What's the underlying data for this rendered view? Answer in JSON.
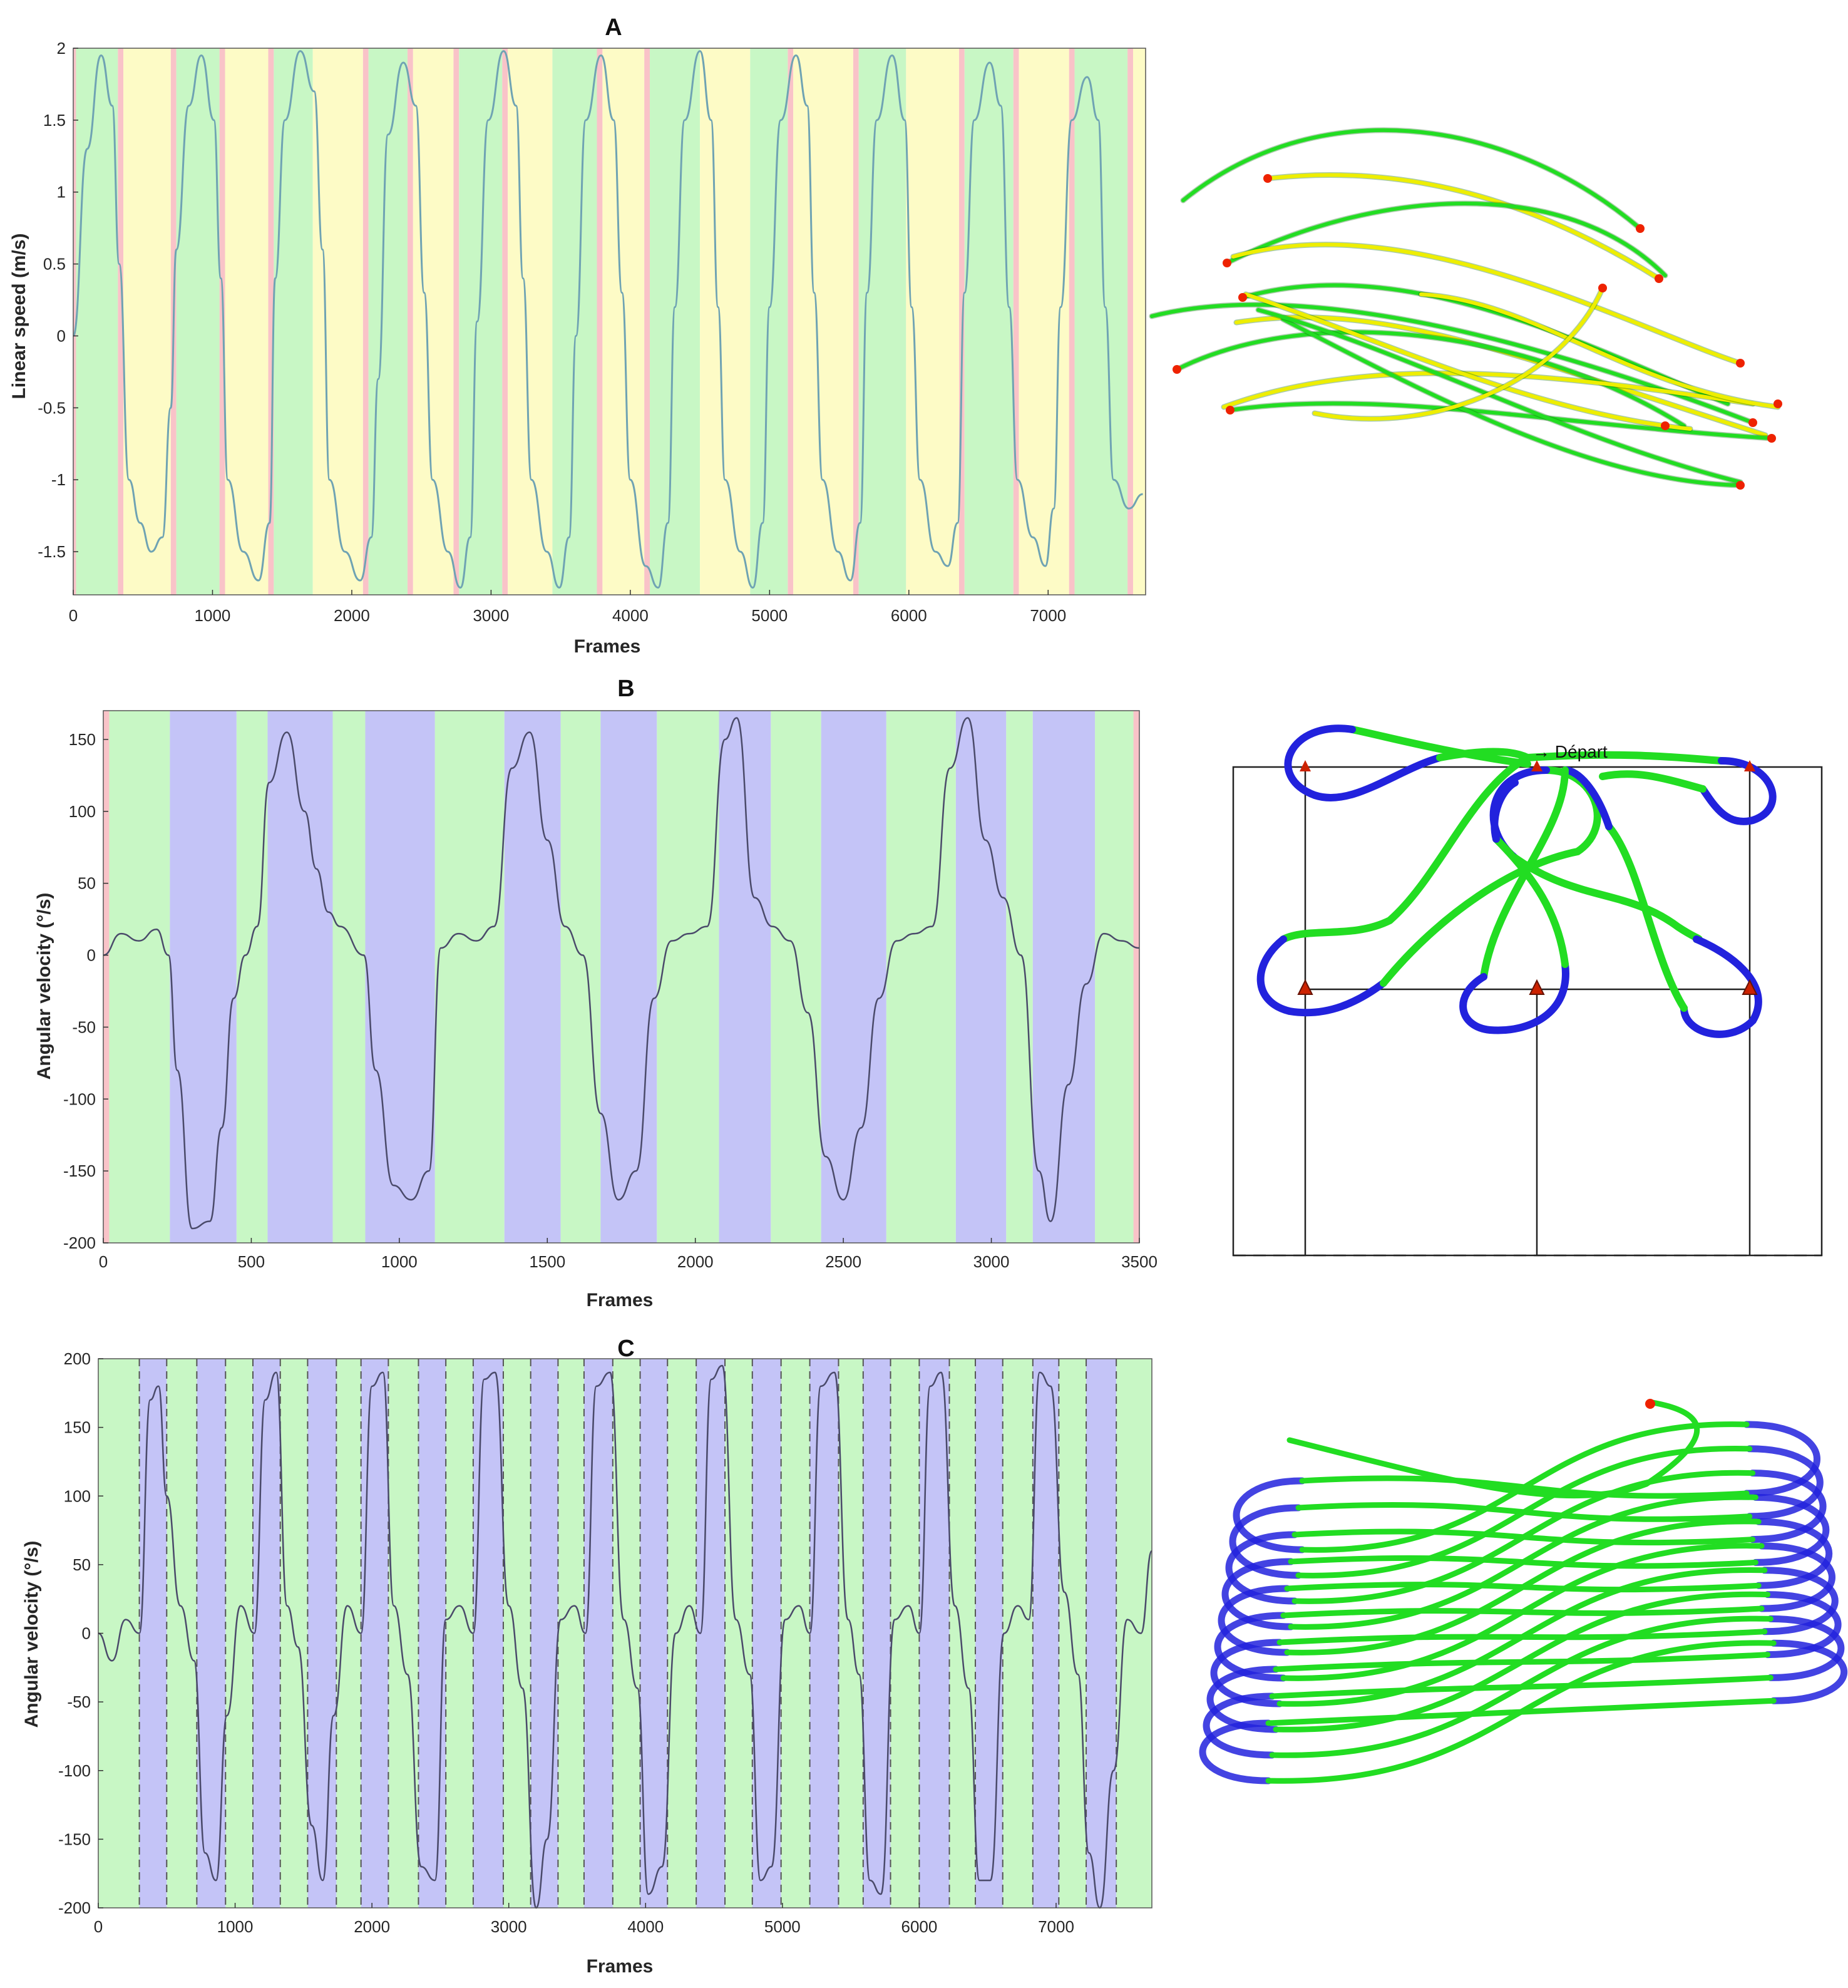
{
  "colors": {
    "green_phase": "#c8f7c5",
    "yellow_phase": "#fdfbc6",
    "red_phase": "#f9c3c8",
    "purple_phase": "#c4c4f7",
    "signal_a": "#6fa3b3",
    "signal_bc": "#4a4a6a",
    "traj_green": "#22dd22",
    "traj_yellow": "#eeee00",
    "traj_blue": "#2222dd",
    "marker_red": "#ee2200"
  },
  "chart_data": [
    {
      "type": "line",
      "title": "A",
      "xlabel": "Frames",
      "ylabel": "Linear speed (m/s)",
      "xlim": [
        0,
        7700
      ],
      "ylim": [
        -1.8,
        2.0
      ],
      "xticks": [
        0,
        1000,
        2000,
        3000,
        4000,
        5000,
        6000,
        7000
      ],
      "yticks": [
        -1.5,
        -1,
        -0.5,
        0,
        0.5,
        1,
        1.5,
        2
      ],
      "ytick_labels": [
        "-1.5",
        "-1",
        "-0.5",
        "0",
        "0.5",
        "1",
        "1.5",
        "2"
      ],
      "series": [
        {
          "x": [
            0,
            100,
            200,
            280,
            330,
            400,
            480,
            560,
            640,
            700,
            740,
            830,
            920,
            1010,
            1060,
            1110,
            1220,
            1330,
            1410,
            1450,
            1520,
            1630,
            1730,
            1790,
            1840,
            1950,
            2060,
            2140,
            2190,
            2260,
            2370,
            2460,
            2520,
            2580,
            2690,
            2780,
            2850,
            2900,
            2980,
            3090,
            3180,
            3230,
            3290,
            3400,
            3490,
            3560,
            3610,
            3680,
            3790,
            3880,
            3940,
            4000,
            4110,
            4200,
            4270,
            4320,
            4390,
            4500,
            4580,
            4630,
            4680,
            4790,
            4880,
            4950,
            5000,
            5080,
            5190,
            5270,
            5320,
            5380,
            5490,
            5580,
            5650,
            5700,
            5770,
            5880,
            5970,
            6020,
            6080,
            6190,
            6280,
            6350,
            6400,
            6470,
            6580,
            6660,
            6720,
            6780,
            6890,
            6980,
            7040,
            7090,
            7170,
            7280,
            7360,
            7410,
            7470,
            7580,
            7680
          ],
          "y": [
            0,
            1.3,
            1.95,
            1.6,
            0.5,
            -1.0,
            -1.3,
            -1.5,
            -1.4,
            -0.5,
            0.6,
            1.6,
            1.95,
            1.5,
            0.4,
            -1.0,
            -1.5,
            -1.7,
            -1.3,
            0.4,
            1.5,
            1.98,
            1.7,
            0.6,
            -1.0,
            -1.5,
            -1.7,
            -1.4,
            -0.3,
            1.4,
            1.9,
            1.6,
            0.3,
            -1.0,
            -1.5,
            -1.75,
            -1.4,
            0.1,
            1.5,
            1.98,
            1.6,
            0.4,
            -1.0,
            -1.5,
            -1.75,
            -1.4,
            0.0,
            1.5,
            1.95,
            1.5,
            0.3,
            -1.0,
            -1.6,
            -1.75,
            -1.3,
            0.2,
            1.5,
            1.98,
            1.5,
            0.2,
            -1.0,
            -1.5,
            -1.75,
            -1.3,
            0.2,
            1.5,
            1.95,
            1.6,
            0.3,
            -1.0,
            -1.5,
            -1.7,
            -1.3,
            0.3,
            1.5,
            1.95,
            1.5,
            0.2,
            -1.0,
            -1.5,
            -1.6,
            -1.3,
            0.3,
            1.5,
            1.9,
            1.6,
            0.2,
            -1.0,
            -1.4,
            -1.6,
            -1.2,
            0.2,
            1.5,
            1.8,
            1.5,
            0.2,
            -1.0,
            -1.2,
            -1.1
          ]
        }
      ],
      "phases": {
        "red": [
          [
            0,
            20
          ],
          [
            320,
            360
          ],
          [
            700,
            740
          ],
          [
            1050,
            1090
          ],
          [
            1400,
            1440
          ],
          [
            2080,
            2120
          ],
          [
            2400,
            2440
          ],
          [
            2730,
            2770
          ],
          [
            3080,
            3120
          ],
          [
            3760,
            3800
          ],
          [
            4100,
            4140
          ],
          [
            5130,
            5170
          ],
          [
            5600,
            5640
          ],
          [
            6360,
            6400
          ],
          [
            6750,
            6790
          ],
          [
            7150,
            7190
          ],
          [
            7570,
            7610
          ]
        ],
        "green": [
          [
            20,
            320
          ],
          [
            740,
            1050
          ],
          [
            1440,
            1720
          ],
          [
            2120,
            2400
          ],
          [
            2770,
            3080
          ],
          [
            3440,
            3760
          ],
          [
            4140,
            4500
          ],
          [
            4860,
            5130
          ],
          [
            5640,
            5980
          ],
          [
            6400,
            6750
          ],
          [
            7190,
            7570
          ]
        ],
        "yellow": [
          [
            360,
            700
          ],
          [
            1090,
            1400
          ],
          [
            1720,
            2080
          ],
          [
            2440,
            2730
          ],
          [
            3120,
            3440
          ],
          [
            3800,
            4100
          ],
          [
            4500,
            4860
          ],
          [
            5170,
            5600
          ],
          [
            5980,
            6360
          ],
          [
            6790,
            7150
          ],
          [
            7610,
            7700
          ]
        ]
      }
    },
    {
      "type": "line",
      "title": "B",
      "xlabel": "Frames",
      "ylabel": "Angular velocity (°/s)",
      "xlim": [
        0,
        3500
      ],
      "ylim": [
        -200,
        170
      ],
      "xticks": [
        0,
        500,
        1000,
        1500,
        2000,
        2500,
        3000,
        3500
      ],
      "yticks": [
        -200,
        -150,
        -100,
        -50,
        0,
        50,
        100,
        150
      ],
      "ytick_labels": [
        "-200",
        "-150",
        "-100",
        "-50",
        "0",
        "50",
        "100",
        "150"
      ],
      "series": [
        {
          "x": [
            0,
            60,
            120,
            180,
            220,
            250,
            300,
            360,
            400,
            440,
            480,
            520,
            560,
            620,
            680,
            720,
            760,
            800,
            880,
            920,
            980,
            1040,
            1100,
            1140,
            1200,
            1260,
            1320,
            1380,
            1440,
            1500,
            1560,
            1620,
            1680,
            1740,
            1800,
            1860,
            1920,
            1980,
            2040,
            2100,
            2140,
            2200,
            2260,
            2320,
            2380,
            2440,
            2500,
            2560,
            2620,
            2680,
            2740,
            2800,
            2860,
            2920,
            2980,
            3040,
            3100,
            3160,
            3200,
            3260,
            3320,
            3380,
            3440,
            3500
          ],
          "y": [
            0,
            15,
            10,
            18,
            0,
            -80,
            -190,
            -185,
            -120,
            -30,
            0,
            20,
            120,
            155,
            100,
            60,
            30,
            20,
            0,
            -80,
            -160,
            -170,
            -150,
            5,
            15,
            10,
            20,
            130,
            155,
            80,
            20,
            0,
            -110,
            -170,
            -150,
            -30,
            10,
            15,
            20,
            150,
            165,
            40,
            20,
            10,
            -40,
            -140,
            -170,
            -120,
            -30,
            10,
            15,
            20,
            130,
            165,
            80,
            40,
            0,
            -150,
            -185,
            -90,
            -20,
            15,
            10,
            5
          ]
        }
      ],
      "phases": {
        "red": [
          [
            0,
            20
          ],
          [
            3480,
            3500
          ]
        ],
        "green": [
          [
            20,
            225
          ],
          [
            450,
            555
          ],
          [
            775,
            885
          ],
          [
            1120,
            1355
          ],
          [
            1545,
            1680
          ],
          [
            1870,
            2080
          ],
          [
            2255,
            2425
          ],
          [
            2645,
            2880
          ],
          [
            3050,
            3140
          ],
          [
            3350,
            3480
          ]
        ],
        "purple": [
          [
            225,
            450
          ],
          [
            555,
            775
          ],
          [
            885,
            1120
          ],
          [
            1355,
            1545
          ],
          [
            1680,
            1870
          ],
          [
            2080,
            2255
          ],
          [
            2425,
            2645
          ],
          [
            2880,
            3050
          ],
          [
            3140,
            3350
          ]
        ]
      }
    },
    {
      "type": "line",
      "title": "C",
      "xlabel": "Frames",
      "ylabel": "Angular velocity (°/s)",
      "xlim": [
        0,
        7700
      ],
      "ylim": [
        -200,
        200
      ],
      "xticks": [
        0,
        1000,
        2000,
        3000,
        4000,
        5000,
        6000,
        7000
      ],
      "yticks": [
        -200,
        -150,
        -100,
        -50,
        0,
        50,
        100,
        150,
        200
      ],
      "ytick_labels": [
        "-200",
        "-150",
        "-100",
        "-50",
        "0",
        "50",
        "100",
        "150",
        "200"
      ],
      "series": [
        {
          "x": [
            0,
            100,
            200,
            300,
            380,
            440,
            500,
            600,
            700,
            780,
            860,
            940,
            1040,
            1140,
            1220,
            1300,
            1380,
            1460,
            1560,
            1640,
            1720,
            1820,
            1920,
            2000,
            2080,
            2160,
            2260,
            2360,
            2460,
            2540,
            2640,
            2740,
            2820,
            2900,
            3000,
            3100,
            3200,
            3280,
            3380,
            3480,
            3560,
            3640,
            3740,
            3840,
            3940,
            4020,
            4120,
            4220,
            4320,
            4400,
            4480,
            4560,
            4660,
            4760,
            4840,
            4920,
            5020,
            5120,
            5200,
            5280,
            5380,
            5480,
            5560,
            5640,
            5720,
            5820,
            5920,
            6000,
            6080,
            6160,
            6260,
            6360,
            6440,
            6520,
            6620,
            6720,
            6800,
            6880,
            6960,
            7060,
            7160,
            7240,
            7320,
            7420,
            7520,
            7620,
            7700
          ],
          "y": [
            0,
            -20,
            10,
            0,
            170,
            180,
            100,
            20,
            -20,
            -160,
            -180,
            -60,
            20,
            0,
            170,
            190,
            20,
            -10,
            -140,
            -180,
            -60,
            20,
            0,
            180,
            190,
            20,
            -30,
            -170,
            -180,
            10,
            20,
            0,
            185,
            190,
            20,
            -40,
            -200,
            -150,
            10,
            20,
            0,
            180,
            190,
            10,
            -40,
            -190,
            -170,
            0,
            20,
            0,
            185,
            195,
            10,
            -30,
            -180,
            -170,
            10,
            20,
            0,
            180,
            190,
            10,
            -30,
            -180,
            -190,
            10,
            20,
            0,
            180,
            190,
            20,
            -40,
            -180,
            -180,
            0,
            20,
            10,
            190,
            180,
            30,
            -30,
            -160,
            -200,
            -100,
            10,
            0,
            60
          ]
        }
      ],
      "phases": {
        "green": [
          [
            0,
            300
          ],
          [
            500,
            720
          ],
          [
            930,
            1130
          ],
          [
            1330,
            1530
          ],
          [
            1740,
            1920
          ],
          [
            2120,
            2340
          ],
          [
            2540,
            2740
          ],
          [
            2960,
            3160
          ],
          [
            3360,
            3550
          ],
          [
            3760,
            3960
          ],
          [
            4160,
            4370
          ],
          [
            4580,
            4780
          ],
          [
            4990,
            5200
          ],
          [
            5410,
            5590
          ],
          [
            5790,
            6000
          ],
          [
            6220,
            6410
          ],
          [
            6610,
            6830
          ],
          [
            7020,
            7220
          ],
          [
            7440,
            7700
          ]
        ],
        "purple": [
          [
            300,
            500
          ],
          [
            720,
            930
          ],
          [
            1130,
            1330
          ],
          [
            1530,
            1740
          ],
          [
            1920,
            2120
          ],
          [
            2340,
            2540
          ],
          [
            2740,
            2960
          ],
          [
            3160,
            3360
          ],
          [
            3550,
            3760
          ],
          [
            3960,
            4160
          ],
          [
            4370,
            4580
          ],
          [
            4780,
            4990
          ],
          [
            5200,
            5410
          ],
          [
            5590,
            5790
          ],
          [
            6000,
            6220
          ],
          [
            6410,
            6610
          ],
          [
            6830,
            7020
          ],
          [
            7220,
            7440
          ]
        ]
      }
    }
  ],
  "annotations": {
    "depart_label": "→ Départ"
  }
}
